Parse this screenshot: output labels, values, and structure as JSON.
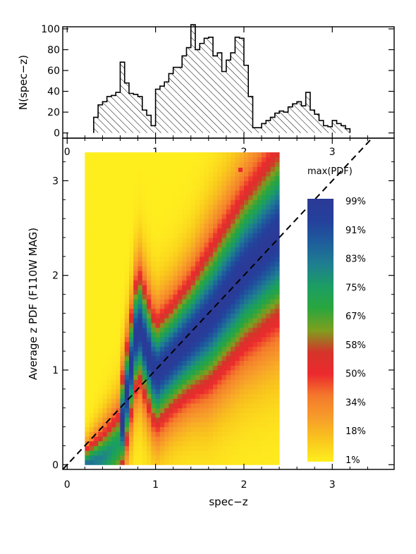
{
  "chart_data": [
    {
      "type": "bar",
      "style": "step-histogram-hatched",
      "ylabel": "N(spec−z)",
      "xlim": [
        -0.05,
        3.7
      ],
      "ylim": [
        -5,
        102
      ],
      "x_ticks": [
        "0",
        "1",
        "2",
        "3"
      ],
      "y_ticks": [
        "0",
        "20",
        "40",
        "60",
        "80",
        "100"
      ],
      "bin_width": 0.05,
      "bins_start": 0.3,
      "values": [
        15,
        27,
        30,
        35,
        36,
        39,
        68,
        48,
        38,
        37,
        35,
        22,
        17,
        7,
        42,
        45,
        49,
        57,
        63,
        63,
        74,
        82,
        104,
        80,
        86,
        91,
        92,
        74,
        77,
        59,
        70,
        77,
        92,
        91,
        65,
        35,
        5,
        5,
        9,
        12,
        15,
        19,
        21,
        20,
        25,
        28,
        30,
        26,
        39,
        22,
        18,
        12,
        7,
        6,
        12,
        9,
        7,
        4
      ]
    },
    {
      "type": "heatmap",
      "xlabel": "spec−z",
      "ylabel": "Average z PDF (F110W MAG)",
      "xlim": [
        -0.05,
        3.7
      ],
      "ylim": [
        -0.05,
        3.45
      ],
      "x_ticks": [
        "0",
        "1",
        "2",
        "3"
      ],
      "y_ticks": [
        "0",
        "1",
        "2",
        "3"
      ],
      "x_range": [
        0.2,
        2.4
      ],
      "y_range": [
        0.0,
        3.3
      ],
      "diagonal": "y = x (dashed)",
      "colorbar_title": "max(PDF)",
      "colorbar_labels": [
        "99%",
        "91%",
        "83%",
        "75%",
        "67%",
        "58%",
        "50%",
        "34%",
        "18%",
        "1%"
      ],
      "colormap": [
        "#ffee1e",
        "#f9c61d",
        "#f79d2a",
        "#f47a2b",
        "#ec2a2e",
        "#d5342a",
        "#7e9f1e",
        "#2aa63e",
        "#1b9e63",
        "#1f7f90",
        "#1e5d9c",
        "#24409c",
        "#2b3a96"
      ],
      "column_x_centers": [
        0.2,
        0.4,
        0.6,
        0.8,
        1.0,
        1.2,
        1.4,
        1.6,
        1.8,
        2.0,
        2.2,
        2.4
      ],
      "peak_z_by_column": [
        0.0,
        0.1,
        0.3,
        1.5,
        0.95,
        1.15,
        1.35,
        1.55,
        1.8,
        2.05,
        2.25,
        2.45
      ],
      "column_width_param": [
        0.2,
        0.35,
        0.45,
        0.55,
        0.55,
        0.55,
        0.6,
        0.7,
        0.75,
        0.8,
        0.85,
        0.9
      ]
    }
  ]
}
